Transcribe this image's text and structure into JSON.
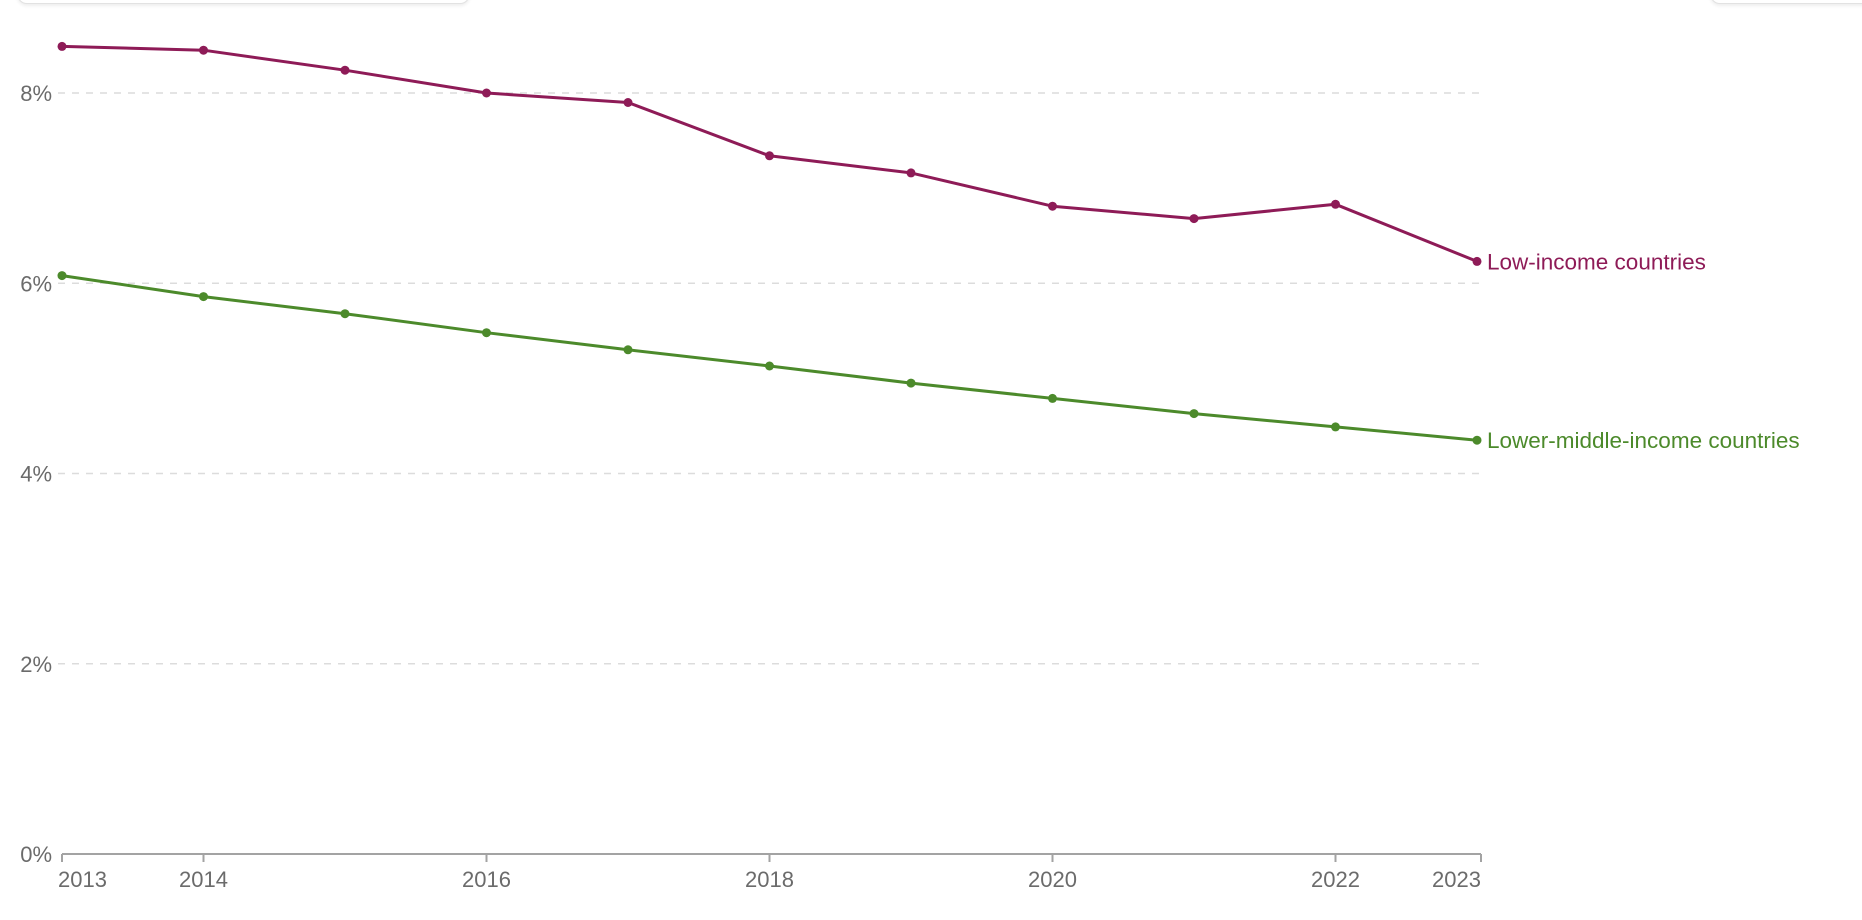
{
  "chart_data": {
    "type": "line",
    "title": "",
    "xlabel": "",
    "ylabel": "",
    "x": [
      2013,
      2014,
      2015,
      2016,
      2017,
      2018,
      2019,
      2020,
      2021,
      2022,
      2023
    ],
    "series": [
      {
        "name": "Low-income countries",
        "color": "#8E1B57",
        "values": [
          8.49,
          8.45,
          8.24,
          8.0,
          7.9,
          7.34,
          7.16,
          6.81,
          6.68,
          6.83,
          6.23
        ]
      },
      {
        "name": "Lower-middle-income countries",
        "color": "#4C8A2B",
        "values": [
          6.08,
          5.86,
          5.68,
          5.48,
          5.3,
          5.13,
          4.95,
          4.79,
          4.63,
          4.49,
          4.35
        ]
      }
    ],
    "xlim": [
      2013,
      2023
    ],
    "ylim": [
      0,
      8.6
    ],
    "yticks": [
      0,
      2,
      4,
      6,
      8
    ],
    "ytick_labels": [
      "0%",
      "2%",
      "4%",
      "6%",
      "8%"
    ],
    "xticks": [
      2013,
      2014,
      2016,
      2018,
      2020,
      2022,
      2023
    ],
    "xtick_labels": [
      "2013",
      "2014",
      "2016",
      "2018",
      "2020",
      "2022",
      "2023"
    ],
    "grid": "horizontal-dashed",
    "legend": "end-of-line-labels",
    "marker": "dot"
  },
  "style": {
    "grid_color": "#dcdcdc",
    "axis_color": "#a3a3a3",
    "tick_label_color": "#6b6b6b",
    "background": "#ffffff"
  }
}
